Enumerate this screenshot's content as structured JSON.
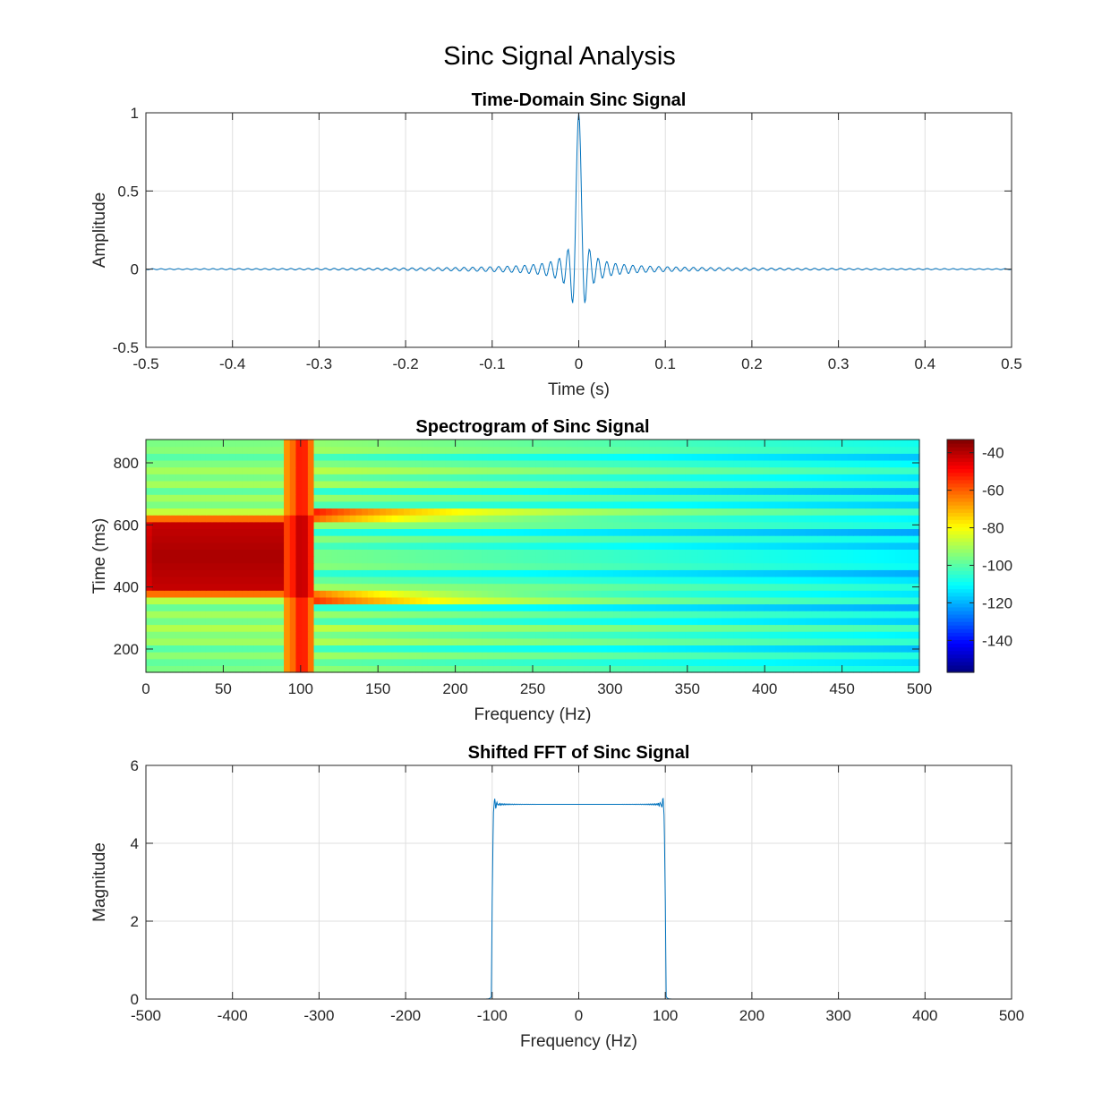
{
  "figure_title": "Sinc Signal Analysis",
  "chart_data": [
    {
      "type": "line",
      "title": "Time-Domain Sinc Signal",
      "xlabel": "Time (s)",
      "ylabel": "Amplitude",
      "xlim": [
        -0.5,
        0.5
      ],
      "ylim": [
        -0.5,
        1
      ],
      "xticks": [
        "-0.5",
        "-0.4",
        "-0.3",
        "-0.2",
        "-0.1",
        "0",
        "0.1",
        "0.2",
        "0.3",
        "0.4",
        "0.5"
      ],
      "yticks": [
        "-0.5",
        "0",
        "0.5",
        "1"
      ],
      "grid": true,
      "series_color": "#0072BD",
      "signal": {
        "function": "sinc",
        "cutoff_hz": 100,
        "sample_rate_hz": 1000,
        "peak": 1
      }
    },
    {
      "type": "heatmap",
      "title": "Spectrogram of Sinc Signal",
      "xlabel": "Frequency (Hz)",
      "ylabel": "Time (ms)",
      "xlim": [
        0,
        500
      ],
      "ylim": [
        125,
        875
      ],
      "xticks": [
        "0",
        "50",
        "100",
        "150",
        "200",
        "250",
        "300",
        "350",
        "400",
        "450",
        "500"
      ],
      "yticks": [
        "200",
        "400",
        "600",
        "800"
      ],
      "colorbar": {
        "range": [
          -157,
          -33
        ],
        "ticks": [
          "-40",
          "-60",
          "-80",
          "-100",
          "-120",
          "-140"
        ],
        "colormap": "jet"
      },
      "power_db": {
        "passband_center": -38,
        "transition_band_hz": [
          91,
          110
        ],
        "transition_level": -45,
        "stopband_level": -105,
        "min": -155
      }
    },
    {
      "type": "line",
      "title": "Shifted FFT of Sinc Signal",
      "xlabel": "Frequency (Hz)",
      "ylabel": "Magnitude",
      "xlim": [
        -500,
        500
      ],
      "ylim": [
        0,
        6
      ],
      "xticks": [
        "-500",
        "-400",
        "-300",
        "-200",
        "-100",
        "0",
        "100",
        "200",
        "300",
        "400",
        "500"
      ],
      "yticks": [
        "0",
        "2",
        "4",
        "6"
      ],
      "grid": true,
      "series_color": "#0072BD",
      "spectrum": {
        "passband_hz": [
          -100,
          100
        ],
        "passband_magnitude": 5,
        "edge_peak": 5.45,
        "stopband_magnitude": 0
      }
    }
  ]
}
